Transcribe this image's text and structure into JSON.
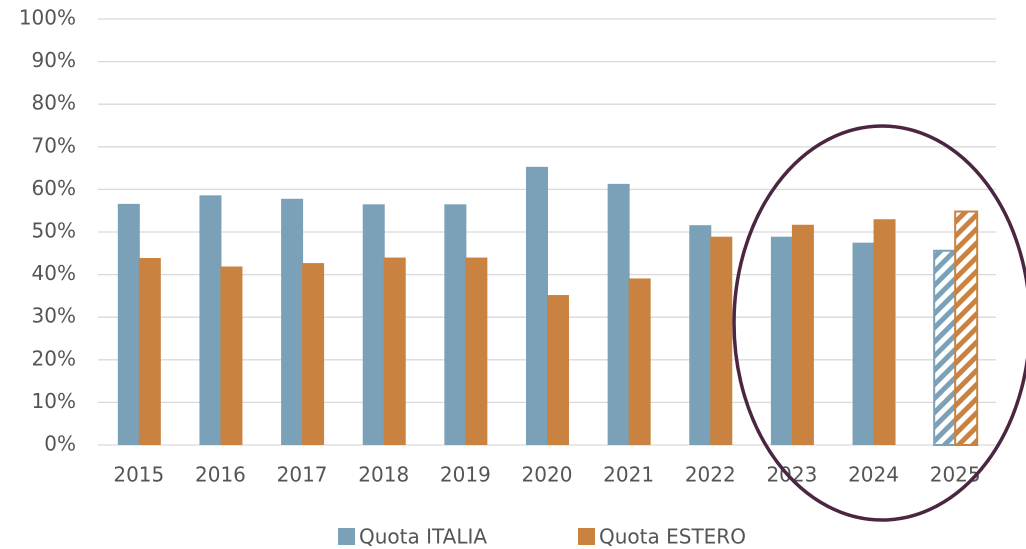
{
  "chart_data": {
    "type": "bar",
    "categories": [
      "2015",
      "2016",
      "2017",
      "2018",
      "2019",
      "2020",
      "2021",
      "2022",
      "2023",
      "2024",
      "2025"
    ],
    "series": [
      {
        "name": "Quota ITALIA",
        "color": "#7aa1b8",
        "values": [
          56.6,
          58.6,
          57.8,
          56.5,
          56.5,
          65.3,
          61.3,
          51.6,
          48.9,
          47.5,
          45.6
        ]
      },
      {
        "name": "Quota ESTERO",
        "color": "#c98240",
        "values": [
          43.9,
          41.9,
          42.7,
          44.0,
          44.0,
          35.2,
          39.1,
          48.9,
          51.7,
          53.0,
          54.8
        ]
      }
    ],
    "ylim": [
      0,
      100
    ],
    "yticks": [
      {
        "value": 0,
        "label": "0%"
      },
      {
        "value": 10,
        "label": "10%"
      },
      {
        "value": 20,
        "label": "20%"
      },
      {
        "value": 30,
        "label": "30%"
      },
      {
        "value": 40,
        "label": "40%"
      },
      {
        "value": 50,
        "label": "50%"
      },
      {
        "value": 60,
        "label": "60%"
      },
      {
        "value": 70,
        "label": "70%"
      },
      {
        "value": 80,
        "label": "80%"
      },
      {
        "value": 90,
        "label": "90%"
      },
      {
        "value": 100,
        "label": "100%"
      }
    ],
    "grid": true,
    "legend": "bottom",
    "hatched_last": true
  }
}
